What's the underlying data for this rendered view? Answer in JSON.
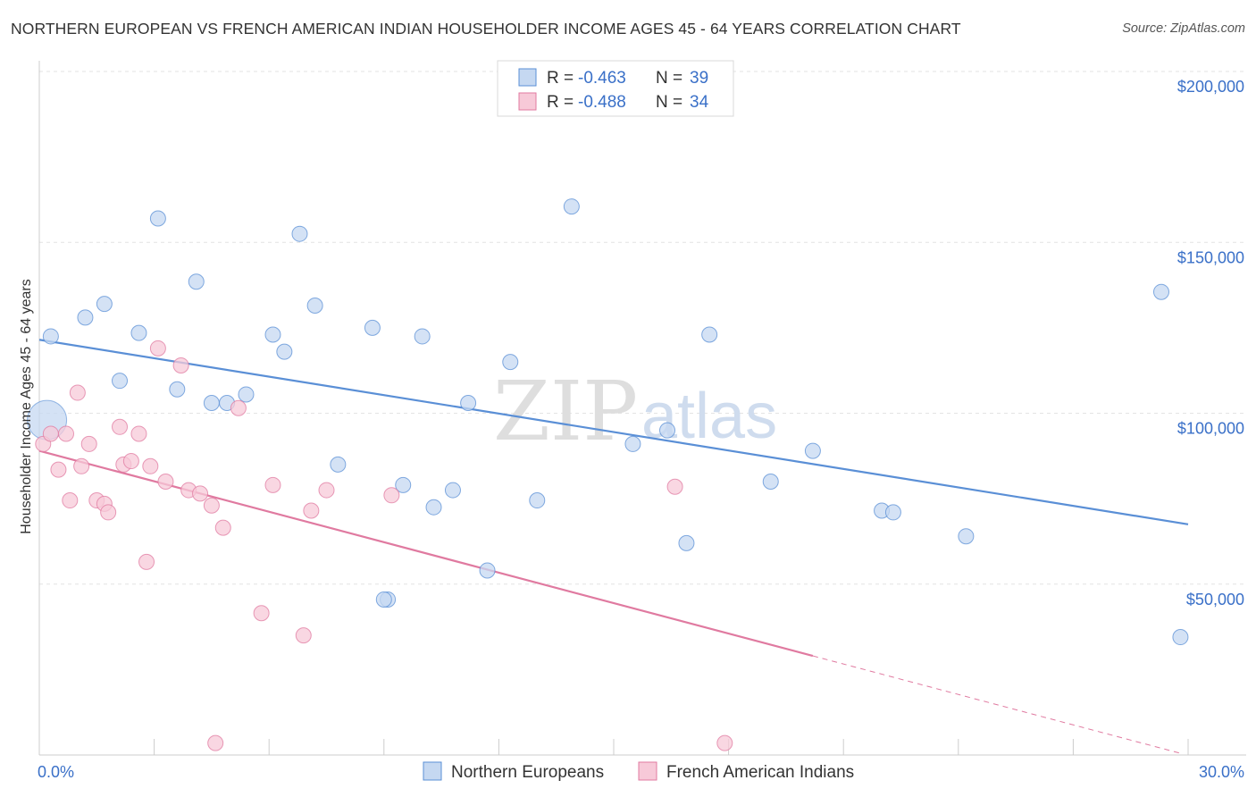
{
  "title": "NORTHERN EUROPEAN VS FRENCH AMERICAN INDIAN HOUSEHOLDER INCOME AGES 45 - 64 YEARS CORRELATION CHART",
  "source": "Source: ZipAtlas.com",
  "watermark": {
    "zip": "ZIP",
    "atlas": "atlas"
  },
  "legend": {
    "series": [
      {
        "r_label": "R = ",
        "r_value": "-0.463",
        "n_label": "N = ",
        "n_value": "39"
      },
      {
        "r_label": "R = ",
        "r_value": "-0.488",
        "n_label": "N = ",
        "n_value": "34"
      }
    ]
  },
  "chart_data": {
    "type": "scatter",
    "title": "NORTHERN EUROPEAN VS FRENCH AMERICAN INDIAN HOUSEHOLDER INCOME AGES 45 - 64 YEARS CORRELATION CHART",
    "xlabel": "",
    "ylabel": "Householder Income Ages 45 - 64 years",
    "xlim": [
      0,
      30
    ],
    "ylim": [
      0,
      200000
    ],
    "x_tick_labels": [
      "0.0%",
      "30.0%"
    ],
    "y_ticks": [
      {
        "value": 50000,
        "label": "$50,000"
      },
      {
        "value": 100000,
        "label": "$100,000"
      },
      {
        "value": 150000,
        "label": "$150,000"
      },
      {
        "value": 200000,
        "label": "$200,000"
      }
    ],
    "grid": true,
    "legend_position": "top-center",
    "series": [
      {
        "name": "Northern Europeans",
        "color": "#5a8fd6",
        "fill": "#c5d8f1",
        "r": -0.463,
        "n": 39,
        "trend": {
          "x0": 0.0,
          "y0": 121500,
          "x1": 30.0,
          "y1": 67500,
          "dashed_after": null
        },
        "points": [
          {
            "x": 0.3,
            "y": 122500
          },
          {
            "x": 1.2,
            "y": 128000
          },
          {
            "x": 1.7,
            "y": 132000
          },
          {
            "x": 2.1,
            "y": 109500
          },
          {
            "x": 2.6,
            "y": 123500
          },
          {
            "x": 3.1,
            "y": 157000
          },
          {
            "x": 3.6,
            "y": 107000
          },
          {
            "x": 4.1,
            "y": 138500
          },
          {
            "x": 4.5,
            "y": 103000
          },
          {
            "x": 4.9,
            "y": 103000
          },
          {
            "x": 5.4,
            "y": 105500
          },
          {
            "x": 6.1,
            "y": 123000
          },
          {
            "x": 6.4,
            "y": 118000
          },
          {
            "x": 6.8,
            "y": 152500
          },
          {
            "x": 7.2,
            "y": 131500
          },
          {
            "x": 7.8,
            "y": 85000
          },
          {
            "x": 8.7,
            "y": 125000
          },
          {
            "x": 9.1,
            "y": 45500
          },
          {
            "x": 9.0,
            "y": 45500
          },
          {
            "x": 9.5,
            "y": 79000
          },
          {
            "x": 10.0,
            "y": 122500
          },
          {
            "x": 10.3,
            "y": 72500
          },
          {
            "x": 10.8,
            "y": 77500
          },
          {
            "x": 11.2,
            "y": 103000
          },
          {
            "x": 11.7,
            "y": 54000
          },
          {
            "x": 12.3,
            "y": 115000
          },
          {
            "x": 13.0,
            "y": 74500
          },
          {
            "x": 13.9,
            "y": 160500
          },
          {
            "x": 15.5,
            "y": 91000
          },
          {
            "x": 16.4,
            "y": 95000
          },
          {
            "x": 16.9,
            "y": 62000
          },
          {
            "x": 17.5,
            "y": 123000
          },
          {
            "x": 19.1,
            "y": 80000
          },
          {
            "x": 20.2,
            "y": 89000
          },
          {
            "x": 22.0,
            "y": 71500
          },
          {
            "x": 22.3,
            "y": 71000
          },
          {
            "x": 24.2,
            "y": 64000
          },
          {
            "x": 29.3,
            "y": 135500
          },
          {
            "x": 29.8,
            "y": 34500
          }
        ],
        "big_point": {
          "x": 0.2,
          "y": 98000
        }
      },
      {
        "name": "French American Indians",
        "color": "#e07aa0",
        "fill": "#f7c9d8",
        "r": -0.488,
        "n": 34,
        "trend": {
          "x0": 0.0,
          "y0": 89000,
          "x1": 20.2,
          "y1": 29000,
          "dashed_to_x": 29.8,
          "dashed_to_y": 500
        },
        "points": [
          {
            "x": 0.1,
            "y": 91000
          },
          {
            "x": 0.3,
            "y": 94000
          },
          {
            "x": 0.5,
            "y": 83500
          },
          {
            "x": 0.7,
            "y": 94000
          },
          {
            "x": 0.8,
            "y": 74500
          },
          {
            "x": 1.0,
            "y": 106000
          },
          {
            "x": 1.1,
            "y": 84500
          },
          {
            "x": 1.3,
            "y": 91000
          },
          {
            "x": 1.5,
            "y": 74500
          },
          {
            "x": 1.7,
            "y": 73500
          },
          {
            "x": 1.8,
            "y": 71000
          },
          {
            "x": 2.1,
            "y": 96000
          },
          {
            "x": 2.2,
            "y": 85000
          },
          {
            "x": 2.4,
            "y": 86000
          },
          {
            "x": 2.6,
            "y": 94000
          },
          {
            "x": 2.8,
            "y": 56500
          },
          {
            "x": 2.9,
            "y": 84500
          },
          {
            "x": 3.1,
            "y": 119000
          },
          {
            "x": 3.3,
            "y": 80000
          },
          {
            "x": 3.7,
            "y": 114000
          },
          {
            "x": 3.9,
            "y": 77500
          },
          {
            "x": 4.2,
            "y": 76500
          },
          {
            "x": 4.5,
            "y": 73000
          },
          {
            "x": 4.8,
            "y": 66500
          },
          {
            "x": 5.2,
            "y": 101500
          },
          {
            "x": 5.8,
            "y": 41500
          },
          {
            "x": 6.1,
            "y": 79000
          },
          {
            "x": 6.9,
            "y": 35000
          },
          {
            "x": 7.1,
            "y": 71500
          },
          {
            "x": 7.5,
            "y": 77500
          },
          {
            "x": 9.2,
            "y": 76000
          },
          {
            "x": 16.6,
            "y": 78500
          },
          {
            "x": 4.6,
            "y": 3500
          },
          {
            "x": 17.9,
            "y": 3500
          }
        ]
      }
    ]
  },
  "bottom_legend": [
    {
      "label": "Northern Europeans"
    },
    {
      "label": "French American Indians"
    }
  ]
}
